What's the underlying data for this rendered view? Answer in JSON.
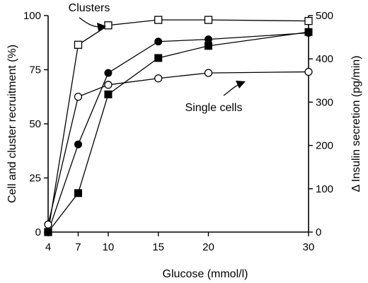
{
  "chart_data": {
    "type": "line",
    "xlabel": "Glucose (mmol/l)",
    "ylabel_left": "Cell and cluster recruitment (%)",
    "ylabel_right": "Δ Insulin secretion (pg/min)",
    "x_ticks": [
      4,
      7,
      10,
      15,
      20,
      30
    ],
    "xlim": [
      4,
      30
    ],
    "ylim_left": [
      0,
      100
    ],
    "ylim_right": [
      0,
      500
    ],
    "y_ticks_left": [
      0,
      25,
      50,
      75,
      100
    ],
    "y_ticks_right": [
      0,
      100,
      200,
      300,
      400,
      500
    ],
    "grid": false,
    "annotations": [
      {
        "text": "Clusters",
        "series": "clusters"
      },
      {
        "text": "Single cells",
        "series": "single_cells"
      }
    ],
    "series": [
      {
        "key": "clusters",
        "marker": "open-square",
        "axis": "left",
        "x": [
          4,
          7,
          10,
          15,
          20,
          30
        ],
        "values": [
          0,
          86.5,
          95.5,
          98,
          98,
          97.5
        ]
      },
      {
        "key": "filled_circles",
        "marker": "filled-circle",
        "axis": "left",
        "x": [
          4,
          7,
          10,
          15,
          20,
          30
        ],
        "values": [
          0,
          40.5,
          73.5,
          88,
          89,
          92
        ]
      },
      {
        "key": "insulin_secretion",
        "marker": "filled-square",
        "axis": "right",
        "x": [
          4,
          7,
          10,
          15,
          20,
          30
        ],
        "values": [
          0,
          90,
          318,
          402,
          430,
          462
        ]
      },
      {
        "key": "single_cells",
        "marker": "open-circle",
        "axis": "left",
        "x": [
          4,
          7,
          10,
          15,
          20,
          30
        ],
        "values": [
          3.5,
          62.5,
          68,
          71,
          73.5,
          74
        ]
      }
    ]
  }
}
